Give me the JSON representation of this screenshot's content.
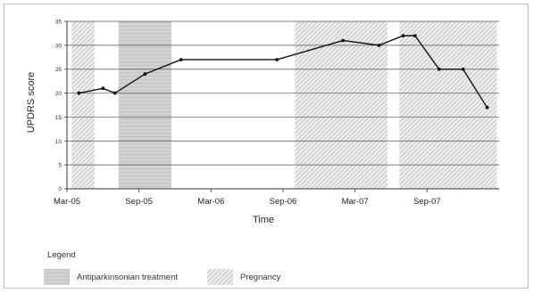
{
  "chart_data": {
    "type": "line",
    "ylabel": "UPDRS score",
    "xlabel": "Time",
    "ylim": [
      0,
      35
    ],
    "yticks": [
      0,
      5,
      10,
      15,
      20,
      25,
      30,
      35
    ],
    "xtick_labels": [
      "Mar-05",
      "Sep-05",
      "Mar-06",
      "Sep-06",
      "Mar-07",
      "Sep-07"
    ],
    "xtick_months": [
      0,
      6,
      12,
      18,
      24,
      30
    ],
    "x_unit": "months since Mar-05",
    "grid": true,
    "series": [
      {
        "x": [
          1,
          3,
          4,
          6.5,
          9.5,
          17.5,
          23,
          26,
          28,
          29,
          31,
          33,
          35
        ],
        "values": [
          20,
          21,
          20,
          24,
          27,
          27,
          31,
          30,
          32,
          32,
          25,
          25,
          17
        ]
      }
    ],
    "shaded_periods": [
      {
        "kind": "pregnancy",
        "from": 0.4,
        "to": 2.3
      },
      {
        "kind": "antiparkinsonian",
        "from": 4.3,
        "to": 8.7
      },
      {
        "kind": "antiparkinsonian",
        "from": 19.0,
        "to": 26.7
      },
      {
        "kind": "pregnancy",
        "from": 19.0,
        "to": 26.7
      },
      {
        "kind": "antiparkinsonian",
        "from": 27.7,
        "to": 35.8
      },
      {
        "kind": "pregnancy",
        "from": 27.7,
        "to": 35.8
      }
    ],
    "legend": {
      "title": "Legend",
      "items": [
        {
          "kind": "antiparkinsonian",
          "label": "Antiparkinsonian treatment"
        },
        {
          "kind": "pregnancy",
          "label": "Pregnancy"
        }
      ]
    }
  }
}
